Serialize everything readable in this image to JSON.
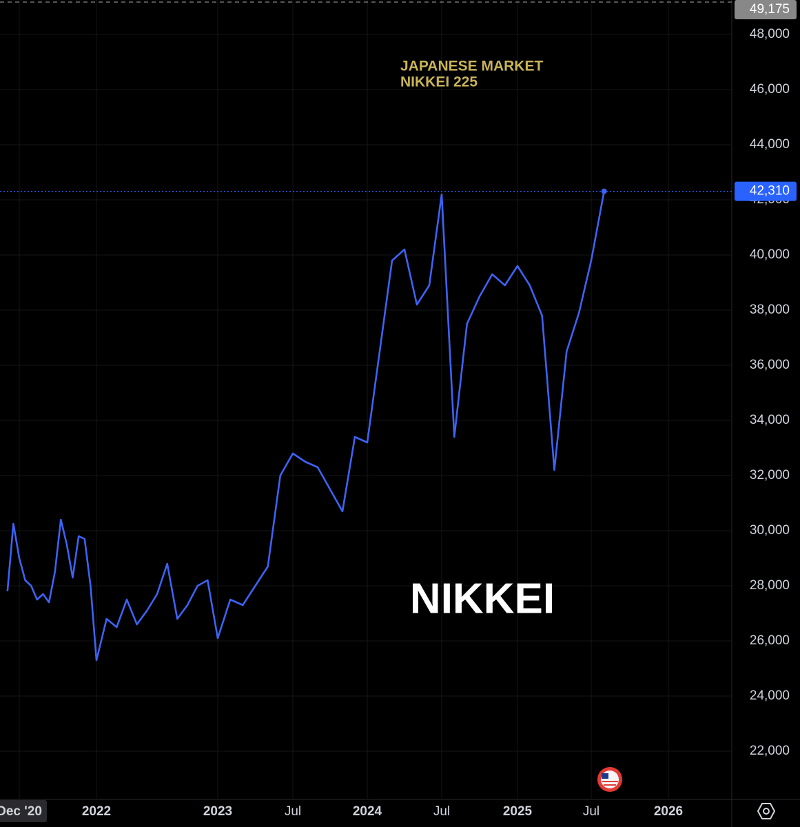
{
  "chart_data": {
    "type": "line",
    "title": "JAPANESE MARKET",
    "subtitle": "NIKKEI 225",
    "watermark": "NIKKEI",
    "color": "#3d63f5",
    "x": [
      "2020-10",
      "2020-11",
      "2020-12",
      "2021-01",
      "2021-02",
      "2021-03",
      "2021-04",
      "2021-05",
      "2021-06",
      "2021-07",
      "2021-08",
      "2021-09",
      "2021-10",
      "2021-11",
      "2021-12",
      "2022-01",
      "2022-02",
      "2022-03",
      "2022-04",
      "2022-05",
      "2022-06",
      "2022-07",
      "2022-08",
      "2022-09",
      "2022-10",
      "2022-11",
      "2022-12",
      "2023-01",
      "2023-02",
      "2023-03",
      "2023-04",
      "2023-05",
      "2023-06",
      "2023-07",
      "2023-08",
      "2023-09",
      "2023-10",
      "2023-11",
      "2023-12",
      "2024-01",
      "2024-02",
      "2024-03",
      "2024-04",
      "2024-05",
      "2024-06",
      "2024-07",
      "2024-08",
      "2024-09",
      "2024-10",
      "2024-11",
      "2024-12",
      "2025-01",
      "2025-02",
      "2025-03",
      "2025-04",
      "2025-05",
      "2025-06",
      "2025-07",
      "2025-08"
    ],
    "values": [
      27800,
      30250,
      29000,
      28200,
      28000,
      27500,
      27700,
      27400,
      28500,
      30400,
      29500,
      28300,
      29800,
      29700,
      28000,
      25300,
      26800,
      26500,
      27500,
      26600,
      27100,
      27700,
      28800,
      26800,
      27300,
      28000,
      28200,
      26100,
      27500,
      27300,
      28000,
      28700,
      32000,
      32800,
      32500,
      32300,
      31500,
      30700,
      33400,
      33200,
      36500,
      39800,
      40200,
      38200,
      38900,
      42200,
      33400,
      37500,
      38500,
      39300,
      38900,
      39600,
      38900,
      37800,
      32200,
      36500,
      37900,
      39800,
      42310
    ],
    "xticks": [
      {
        "value": "2020-12",
        "label": "Dec '20"
      },
      {
        "value": "2022-01",
        "label": "2022"
      },
      {
        "value": "2023-01",
        "label": "2023"
      },
      {
        "value": "2023-07",
        "label": "Jul"
      },
      {
        "value": "2024-01",
        "label": "2024"
      },
      {
        "value": "2024-07",
        "label": "Jul"
      },
      {
        "value": "2025-01",
        "label": "2025"
      },
      {
        "value": "2025-07",
        "label": "Jul"
      },
      {
        "value": "2026-01",
        "label": "2026"
      }
    ],
    "ylim": [
      20250,
      49175
    ],
    "yticks": [
      {
        "value": 22000,
        "label": "22,000"
      },
      {
        "value": 24000,
        "label": "24,000"
      },
      {
        "value": 26000,
        "label": "26,000"
      },
      {
        "value": 28000,
        "label": "28,000"
      },
      {
        "value": 30000,
        "label": "30,000"
      },
      {
        "value": 32000,
        "label": "32,000"
      },
      {
        "value": 34000,
        "label": "34,000"
      },
      {
        "value": 36000,
        "label": "36,000"
      },
      {
        "value": 38000,
        "label": "38,000"
      },
      {
        "value": 40000,
        "label": "40,000"
      },
      {
        "value": 42000,
        "label": "42,000"
      },
      {
        "value": 44000,
        "label": "44,000"
      },
      {
        "value": 46000,
        "label": "46,000"
      },
      {
        "value": 48000,
        "label": "48,000"
      }
    ],
    "price_lines": [
      {
        "value": 49175,
        "label": "49,175",
        "color": "#888888"
      },
      {
        "value": 42310,
        "label": "42,310",
        "color": "#2962ff"
      }
    ],
    "grid": true
  }
}
